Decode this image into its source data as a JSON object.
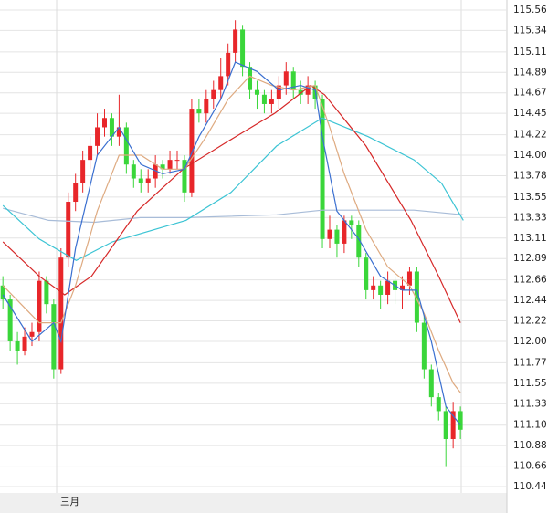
{
  "chart_data": {
    "type": "candlestick",
    "up_color": "#e8262a",
    "down_color": "#3ad63a",
    "open": [
      112.6,
      112.45,
      112.0,
      111.9,
      112.05,
      112.1,
      112.65,
      112.4,
      111.7,
      112.9,
      113.5,
      113.7,
      113.95,
      114.1,
      114.3,
      114.4,
      114.2,
      114.3,
      113.9,
      113.75,
      113.7,
      113.75,
      113.9,
      113.85,
      113.95,
      113.95,
      113.6,
      114.5,
      114.45,
      114.6,
      114.7,
      114.85,
      115.1,
      115.35,
      114.95,
      114.7,
      114.65,
      114.55,
      114.6,
      114.75,
      114.9,
      114.7,
      114.65,
      114.75,
      114.6,
      113.1,
      113.2,
      113.05,
      113.3,
      113.25,
      112.9,
      112.55,
      112.6,
      112.5,
      112.65,
      112.55,
      112.6,
      112.75,
      112.2,
      111.7,
      111.4,
      111.25,
      110.95,
      111.25
    ],
    "high": [
      112.7,
      112.5,
      112.1,
      112.15,
      112.2,
      112.75,
      112.7,
      112.45,
      113.0,
      113.6,
      113.8,
      114.05,
      114.2,
      114.45,
      114.5,
      114.45,
      114.65,
      114.35,
      113.95,
      113.85,
      113.85,
      114.0,
      113.95,
      114.05,
      114.05,
      114.0,
      114.6,
      114.6,
      114.7,
      114.8,
      115.05,
      115.2,
      115.45,
      115.4,
      115.0,
      114.8,
      114.7,
      114.7,
      114.85,
      115.0,
      114.95,
      114.8,
      114.85,
      114.8,
      114.65,
      113.35,
      113.25,
      113.35,
      113.35,
      113.3,
      112.95,
      112.7,
      112.65,
      112.75,
      112.7,
      112.7,
      112.8,
      112.8,
      112.3,
      111.75,
      111.45,
      111.3,
      111.35,
      111.3
    ],
    "low": [
      112.35,
      111.9,
      111.75,
      111.85,
      111.95,
      112.0,
      112.3,
      111.6,
      111.65,
      112.8,
      113.4,
      113.6,
      113.85,
      114.0,
      114.2,
      114.1,
      114.1,
      113.8,
      113.65,
      113.6,
      113.6,
      113.65,
      113.75,
      113.8,
      113.85,
      113.5,
      113.55,
      114.35,
      114.35,
      114.5,
      114.6,
      114.75,
      115.0,
      114.85,
      114.6,
      114.5,
      114.45,
      114.45,
      114.5,
      114.65,
      114.6,
      114.55,
      114.55,
      114.5,
      113.0,
      113.0,
      112.9,
      112.95,
      113.1,
      112.8,
      112.45,
      112.45,
      112.35,
      112.4,
      112.4,
      112.35,
      112.5,
      112.1,
      111.6,
      111.3,
      111.15,
      110.65,
      110.85,
      110.95
    ],
    "close": [
      112.45,
      112.0,
      111.9,
      112.05,
      112.1,
      112.65,
      112.4,
      111.7,
      112.9,
      113.5,
      113.7,
      113.95,
      114.1,
      114.3,
      114.4,
      114.2,
      114.3,
      113.9,
      113.75,
      113.7,
      113.75,
      113.9,
      113.85,
      113.95,
      113.95,
      113.6,
      114.5,
      114.45,
      114.6,
      114.7,
      114.85,
      115.1,
      115.35,
      114.95,
      114.7,
      114.65,
      114.55,
      114.6,
      114.75,
      114.9,
      114.7,
      114.65,
      114.75,
      114.6,
      113.1,
      113.2,
      113.05,
      113.3,
      113.25,
      112.9,
      112.55,
      112.6,
      112.5,
      112.65,
      112.55,
      112.6,
      112.75,
      112.2,
      111.7,
      111.4,
      111.25,
      110.95,
      111.25,
      111.05
    ],
    "lines": [
      {
        "color": "#a8bcd8",
        "x": [
          0,
          6.3,
          12.6,
          18.9,
          25.2,
          37.7,
          44,
          50.3,
          56.6,
          63.4
        ],
        "values": [
          113.43,
          113.3,
          113.28,
          113.33,
          113.33,
          113.36,
          113.41,
          113.41,
          113.41,
          113.36
        ]
      },
      {
        "color": "#3cc4d4",
        "x": [
          0,
          5,
          10.1,
          15.1,
          25.2,
          31.4,
          37.7,
          44,
          50.3,
          56.6,
          60.4,
          63.4
        ],
        "values": [
          113.46,
          113.1,
          112.87,
          113.07,
          113.3,
          113.6,
          114.1,
          114.4,
          114.2,
          113.95,
          113.7,
          113.3
        ]
      },
      {
        "color": "#d62828",
        "x": [
          0,
          5,
          8.5,
          12.2,
          18.5,
          24.8,
          31,
          37.4,
          42.4,
          44.3,
          50,
          56.2,
          60,
          63
        ],
        "values": [
          113.07,
          112.7,
          112.5,
          112.7,
          113.4,
          113.85,
          114.15,
          114.45,
          114.75,
          114.65,
          114.1,
          113.3,
          112.7,
          112.2
        ]
      },
      {
        "color": "#deaa80",
        "x": [
          0,
          5,
          8,
          10,
          13,
          16,
          19,
          22,
          25,
          28,
          31,
          34,
          37,
          40,
          43,
          45,
          47,
          50,
          53,
          56,
          58,
          60,
          62,
          63
        ],
        "values": [
          112.6,
          112.2,
          112.2,
          112.6,
          113.4,
          114.0,
          114.0,
          113.85,
          113.85,
          114.2,
          114.6,
          114.85,
          114.75,
          114.7,
          114.75,
          114.3,
          113.8,
          113.2,
          112.8,
          112.6,
          112.3,
          111.9,
          111.55,
          111.45
        ]
      },
      {
        "color": "#3a6fd0",
        "x": [
          0,
          4,
          7,
          8,
          10,
          13,
          16,
          19,
          22,
          25,
          27,
          30,
          32,
          35,
          38,
          41,
          43,
          44,
          46,
          49,
          52,
          55,
          57,
          59,
          61,
          63
        ],
        "values": [
          112.5,
          112.0,
          112.2,
          112.0,
          113.0,
          114.0,
          114.3,
          113.9,
          113.8,
          113.85,
          114.2,
          114.6,
          115.0,
          114.9,
          114.7,
          114.75,
          114.7,
          114.2,
          113.4,
          113.1,
          112.7,
          112.55,
          112.55,
          112.0,
          111.3,
          111.1
        ]
      }
    ],
    "xlim": [
      -0.4,
      69.4
    ],
    "xticks": [
      {
        "value": 7.4,
        "label": "三月"
      }
    ],
    "ylim": [
      110.44,
      115.56
    ],
    "yticks": [
      115.56,
      115.34,
      115.11,
      114.89,
      114.67,
      114.45,
      114.22,
      {
        "value": 114,
        "label": "114.00"
      },
      113.78,
      113.55,
      113.33,
      113.11,
      112.89,
      112.66,
      112.44,
      112.22,
      {
        "value": 112,
        "label": "112.00"
      },
      111.77,
      111.55,
      111.33,
      {
        "value": 111.1,
        "label": "111.10"
      },
      110.88,
      110.66,
      110.44
    ],
    "grid": true
  }
}
